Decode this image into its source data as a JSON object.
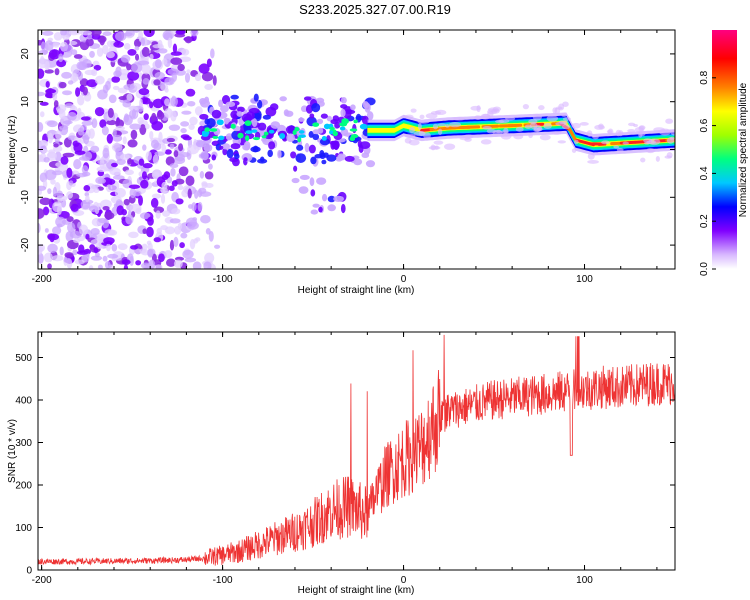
{
  "title": "S233.2025.327.07.00.R19",
  "chart_data": [
    {
      "type": "heatmap",
      "panel": "top",
      "title": "S233.2025.327.07.00.R19",
      "xlabel": "Height of straight line (km)",
      "ylabel": "Frequency (Hz)",
      "xlim": [
        -202,
        150
      ],
      "ylim": [
        -25,
        25
      ],
      "xticks": [
        -200,
        -100,
        0,
        100
      ],
      "yticks": [
        -20,
        -10,
        0,
        10,
        20
      ],
      "colorbar": {
        "label": "Normalized spectral amplitude",
        "range": [
          0,
          1
        ],
        "ticks": [
          0.0,
          0.2,
          0.4,
          0.6,
          0.8
        ],
        "tick_labels": [
          "0.0",
          "0.2",
          "0.4",
          "0.6",
          "0.8"
        ],
        "colormap": [
          "#ffffff",
          "#d8b8ff",
          "#8000ff",
          "#0000ff",
          "#00c8ff",
          "#00ff80",
          "#a0ff00",
          "#ffff00",
          "#ff8000",
          "#ff0000",
          "#ff0080"
        ]
      },
      "ridge": [
        {
          "x": -18,
          "y": 4
        },
        {
          "x": -5,
          "y": 4
        },
        {
          "x": 0,
          "y": 5
        },
        {
          "x": 10,
          "y": 4
        },
        {
          "x": 25,
          "y": 4.5
        },
        {
          "x": 60,
          "y": 5
        },
        {
          "x": 90,
          "y": 5.5
        },
        {
          "x": 95,
          "y": 2
        },
        {
          "x": 105,
          "y": 1
        },
        {
          "x": 150,
          "y": 2
        }
      ]
    },
    {
      "type": "line",
      "panel": "bottom",
      "xlabel": "Height of straight line (km)",
      "ylabel": "SNR (10 * v/v)",
      "xlim": [
        -202,
        150
      ],
      "ylim": [
        0,
        560
      ],
      "xticks": [
        -200,
        -100,
        0,
        100
      ],
      "yticks": [
        0,
        100,
        200,
        300,
        400,
        500
      ],
      "color": "#ee3333",
      "series": [
        {
          "name": "SNR",
          "x": [
            -202,
            -180,
            -160,
            -140,
            -120,
            -110,
            -100,
            -90,
            -80,
            -70,
            -60,
            -50,
            -40,
            -30,
            -25,
            -20,
            -15,
            -10,
            -5,
            0,
            5,
            10,
            15,
            20,
            25,
            30,
            40,
            50,
            60,
            70,
            80,
            90,
            100,
            110,
            120,
            130,
            140,
            150
          ],
          "values": [
            20,
            20,
            21,
            22,
            24,
            28,
            35,
            45,
            60,
            75,
            90,
            110,
            140,
            150,
            140,
            130,
            180,
            220,
            240,
            260,
            270,
            290,
            330,
            360,
            375,
            380,
            390,
            400,
            405,
            410,
            415,
            420,
            425,
            430,
            430,
            435,
            440,
            440
          ]
        }
      ]
    }
  ]
}
